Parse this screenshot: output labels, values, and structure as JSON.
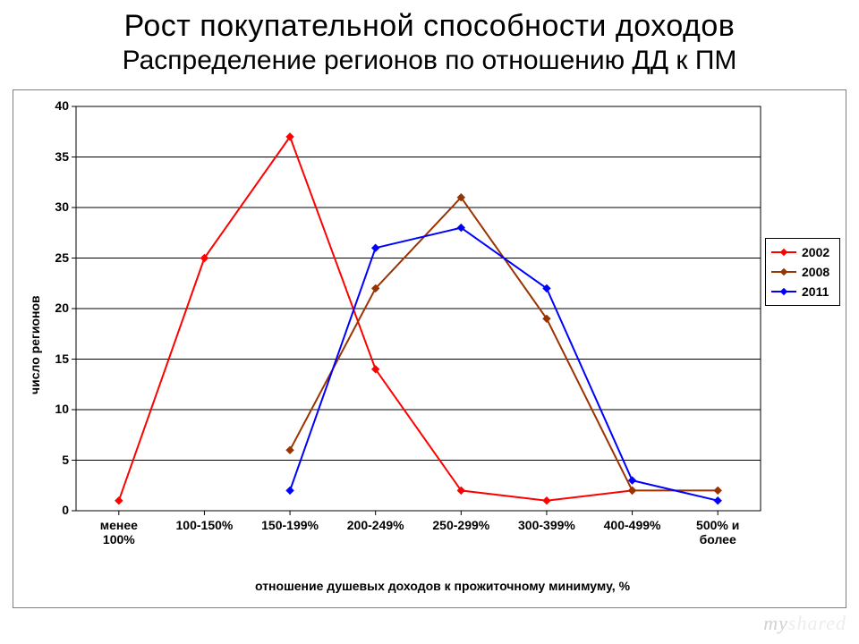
{
  "title": {
    "line1": "Рост покупательной способности доходов",
    "line2": "Распределение регионов по отношению ДД к ПМ"
  },
  "chart": {
    "type": "line",
    "background_color": "#ffffff",
    "plot_border_color": "#000000",
    "grid_color": "#000000",
    "grid_on": true,
    "ylabel": "число регионов",
    "xlabel": "отношение душевых доходов к прожиточному минимуму, %",
    "label_fontsize": 14,
    "tick_fontsize": 14,
    "tick_fontweight": 700,
    "ylim": [
      0,
      40
    ],
    "ytick_step": 5,
    "yticks": [
      0,
      5,
      10,
      15,
      20,
      25,
      30,
      35,
      40
    ],
    "categories": [
      "менее 100%",
      "100-150%",
      "150-199%",
      "200-249%",
      "250-299%",
      "300-399%",
      "400-499%",
      "500% и более"
    ],
    "line_width": 2,
    "marker_style": "diamond",
    "marker_size": 6,
    "legend": {
      "position": "right",
      "border_color": "#000000",
      "background": "#ffffff",
      "fontsize": 14,
      "fontweight": 700
    },
    "series": [
      {
        "name": "2002",
        "color": "#ff0000",
        "data": [
          1,
          25,
          37,
          14,
          2,
          1,
          2,
          null
        ]
      },
      {
        "name": "2008",
        "color": "#993300",
        "data": [
          null,
          null,
          6,
          22,
          31,
          19,
          2,
          2
        ]
      },
      {
        "name": "2011",
        "color": "#0000ff",
        "data": [
          null,
          null,
          2,
          26,
          28,
          22,
          3,
          1
        ]
      }
    ]
  },
  "watermark": {
    "part1": "my",
    "part2": "shared"
  }
}
